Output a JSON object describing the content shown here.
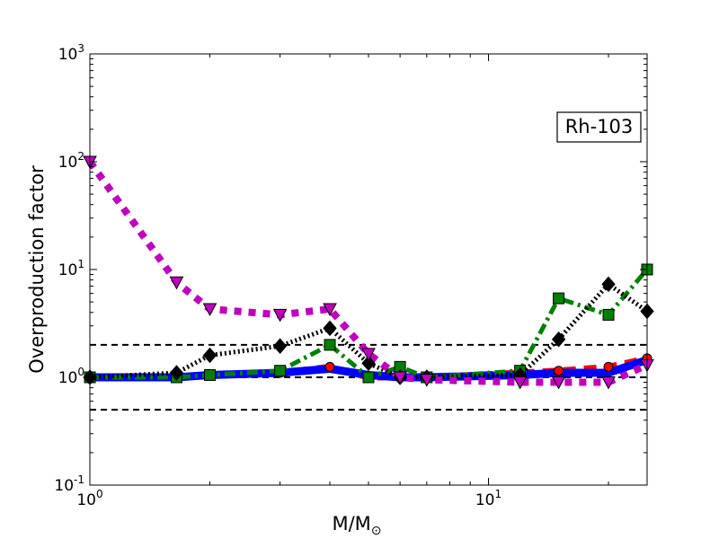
{
  "chart_data": {
    "type": "line",
    "title": "",
    "xlabel": "M/M",
    "xlabel_sub": "⊙",
    "ylabel": "Overproduction factor",
    "xscale": "log",
    "yscale": "log",
    "xlim": [
      1,
      25
    ],
    "ylim": [
      0.1,
      1000
    ],
    "x_ticks": [
      {
        "value": 1,
        "base": "10",
        "exp": "0"
      },
      {
        "value": 10,
        "base": "10",
        "exp": "1"
      }
    ],
    "y_ticks": [
      {
        "value": 0.1,
        "base": "10",
        "exp": "-1"
      },
      {
        "value": 1,
        "base": "10",
        "exp": "0"
      },
      {
        "value": 10,
        "base": "10",
        "exp": "1"
      },
      {
        "value": 100,
        "base": "10",
        "exp": "2"
      },
      {
        "value": 1000,
        "base": "10",
        "exp": "3"
      }
    ],
    "reference_lines": [
      0.5,
      1,
      2
    ],
    "annotation": "Rh-103",
    "annotation_position": "upper-right",
    "legend": "none",
    "grid": false,
    "series": [
      {
        "color": "#ff0000",
        "dash": "dashed",
        "marker": "circle",
        "x": [
          1,
          1.65,
          2,
          3,
          4,
          5,
          6,
          7,
          12,
          15,
          20,
          25
        ],
        "y": [
          1.0,
          1.0,
          1.05,
          1.1,
          1.25,
          1.0,
          1.0,
          1.0,
          1.1,
          1.15,
          1.25,
          1.5
        ]
      },
      {
        "color": "#0000ff",
        "dash": "solid",
        "marker": "none",
        "x": [
          1,
          1.65,
          2,
          3,
          4,
          5,
          6,
          7,
          12,
          15,
          20,
          25
        ],
        "y": [
          1.0,
          1.0,
          1.05,
          1.1,
          1.2,
          1.05,
          1.0,
          1.0,
          1.05,
          1.1,
          1.1,
          1.45
        ]
      },
      {
        "color": "#008000",
        "dash": "dashdot",
        "marker": "square",
        "x": [
          1,
          1.65,
          2,
          3,
          4,
          5,
          6,
          7,
          12,
          15,
          20,
          25
        ],
        "y": [
          1.0,
          1.0,
          1.05,
          1.15,
          2.0,
          1.0,
          1.25,
          1.0,
          1.15,
          5.4,
          3.8,
          10.0
        ]
      },
      {
        "color": "#000000",
        "dash": "dotted",
        "marker": "diamond",
        "x": [
          1,
          1.65,
          2,
          3,
          4,
          5,
          6,
          7,
          12,
          15,
          20,
          25
        ],
        "y": [
          1.0,
          1.1,
          1.6,
          1.95,
          2.85,
          1.35,
          1.0,
          1.0,
          1.05,
          2.25,
          7.3,
          4.1
        ]
      },
      {
        "color": "#bf00bf",
        "dash": "dotted-thick",
        "marker": "triangle-down",
        "x": [
          1,
          1.65,
          2,
          3,
          4,
          5,
          6,
          7,
          12,
          15,
          20,
          25
        ],
        "y": [
          100,
          7.6,
          4.3,
          3.8,
          4.3,
          1.65,
          1.0,
          0.95,
          0.9,
          0.9,
          0.9,
          1.3
        ]
      }
    ]
  }
}
